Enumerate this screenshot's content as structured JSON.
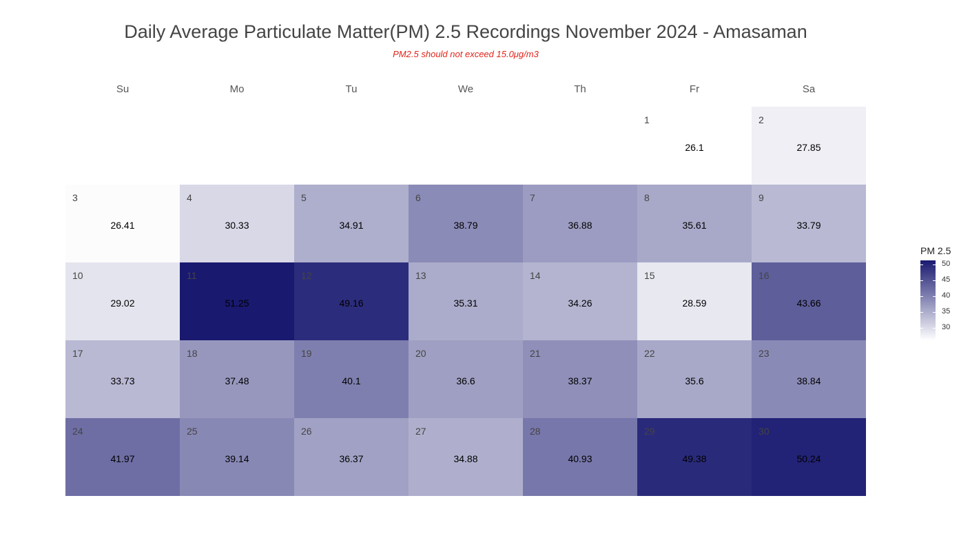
{
  "chart_data": {
    "type": "heatmap",
    "title": "Daily Average Particulate Matter(PM) 2.5 Recordings November 2024 -  Amasaman",
    "subtitle": "PM2.5 should not exceed 15.0μg/m3",
    "weekdays": [
      "Su",
      "Mo",
      "Tu",
      "We",
      "Th",
      "Fr",
      "Sa"
    ],
    "first_weekday_index": 5,
    "days": [
      {
        "day": 1,
        "value": 26.1
      },
      {
        "day": 2,
        "value": 27.85
      },
      {
        "day": 3,
        "value": 26.41
      },
      {
        "day": 4,
        "value": 30.33
      },
      {
        "day": 5,
        "value": 34.91
      },
      {
        "day": 6,
        "value": 38.79
      },
      {
        "day": 7,
        "value": 36.88
      },
      {
        "day": 8,
        "value": 35.61
      },
      {
        "day": 9,
        "value": 33.79
      },
      {
        "day": 10,
        "value": 29.02
      },
      {
        "day": 11,
        "value": 51.25
      },
      {
        "day": 12,
        "value": 49.16
      },
      {
        "day": 13,
        "value": 35.31
      },
      {
        "day": 14,
        "value": 34.26
      },
      {
        "day": 15,
        "value": 28.59
      },
      {
        "day": 16,
        "value": 43.66
      },
      {
        "day": 17,
        "value": 33.73
      },
      {
        "day": 18,
        "value": 37.48
      },
      {
        "day": 19,
        "value": 40.1
      },
      {
        "day": 20,
        "value": 36.6
      },
      {
        "day": 21,
        "value": 38.37
      },
      {
        "day": 22,
        "value": 35.6
      },
      {
        "day": 23,
        "value": 38.84
      },
      {
        "day": 24,
        "value": 41.97
      },
      {
        "day": 25,
        "value": 39.14
      },
      {
        "day": 26,
        "value": 36.37
      },
      {
        "day": 27,
        "value": 34.88
      },
      {
        "day": 28,
        "value": 40.93
      },
      {
        "day": 29,
        "value": 49.38
      },
      {
        "day": 30,
        "value": 50.24
      }
    ],
    "legend": {
      "title": "PM 2.5",
      "min": 26.1,
      "max": 51.25,
      "ticks": [
        30,
        35,
        40,
        45,
        50
      ],
      "low_color": "#ffffff",
      "high_color": "#191970"
    }
  }
}
